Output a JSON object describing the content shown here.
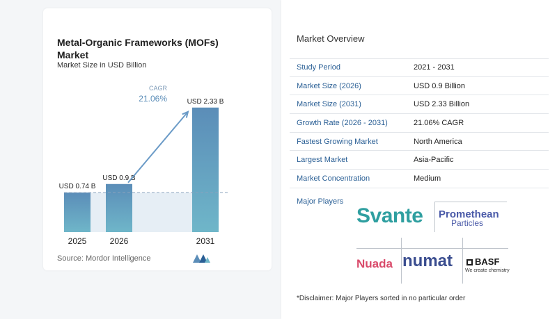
{
  "chart_data": {
    "type": "bar",
    "title": "Metal-Organic Frameworks (MOFs) Market",
    "subtitle": "Market Size in USD Billion",
    "categories": [
      "2025",
      "2026",
      "2031"
    ],
    "values": [
      0.74,
      0.9,
      2.33
    ],
    "value_labels": [
      "USD 0.74 B",
      "USD 0.9 B",
      "USD 2.33 B"
    ],
    "cagr_label": "CAGR",
    "cagr_value": "21.06%",
    "ylim": [
      0,
      2.6
    ],
    "grid": false,
    "colors": {
      "bar_top": "#5b8db8",
      "bar_bottom": "#6fb6c9",
      "arrow": "#6b9bc7",
      "band": "#e6eef5",
      "dash": "#8aa3bd"
    }
  },
  "source": "Source: Mordor Intelligence",
  "overview": {
    "title": "Market Overview",
    "rows": [
      {
        "label": "Study Period",
        "value": "2021 - 2031"
      },
      {
        "label": "Market Size (2026)",
        "value": "USD 0.9 Billion"
      },
      {
        "label": "Market Size (2031)",
        "value": "USD 2.33 Billion"
      },
      {
        "label": "Growth Rate (2026 - 2031)",
        "value": "21.06% CAGR"
      },
      {
        "label": "Fastest Growing Market",
        "value": "North America"
      },
      {
        "label": "Largest Market",
        "value": "Asia-Pacific"
      },
      {
        "label": "Market Concentration",
        "value": "Medium"
      }
    ]
  },
  "players": {
    "label": "Major Players",
    "logos": {
      "svante": "Svante",
      "promethean_1": "Promethean",
      "promethean_2": "Particles",
      "nuada": "Nuada",
      "numat": "numat",
      "basf": "BASF",
      "basf_tagline": "We create chemistry"
    }
  },
  "disclaimer": "*Disclaimer: Major Players sorted in no particular order"
}
